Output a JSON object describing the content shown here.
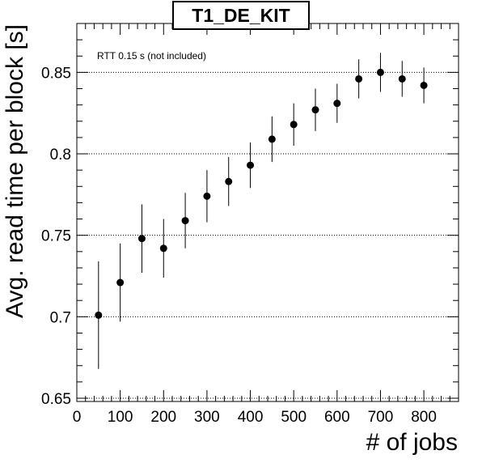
{
  "chart_data": {
    "type": "scatter",
    "title": "T1_DE_KIT",
    "xlabel": "# of jobs",
    "ylabel": "Avg. read time per block [s]",
    "annotation": "RTT 0.15 s (not included)",
    "xlim": [
      0,
      880
    ],
    "ylim": [
      0.648,
      0.88
    ],
    "x_ticks": [
      "0",
      "100",
      "200",
      "300",
      "400",
      "500",
      "600",
      "700",
      "800"
    ],
    "y_ticks": [
      "0.65",
      "0.7",
      "0.75",
      "0.8",
      "0.85"
    ],
    "grid": "horizontal dotted at major y ticks",
    "series": [
      {
        "x": [
          50,
          100,
          150,
          200,
          250,
          300,
          350,
          400,
          450,
          500,
          550,
          600,
          650,
          700,
          750,
          800
        ],
        "y": [
          0.701,
          0.721,
          0.748,
          0.742,
          0.759,
          0.774,
          0.783,
          0.793,
          0.809,
          0.818,
          0.827,
          0.831,
          0.846,
          0.85,
          0.846,
          0.842
        ],
        "y_err": [
          0.033,
          0.024,
          0.021,
          0.018,
          0.017,
          0.016,
          0.015,
          0.014,
          0.014,
          0.013,
          0.013,
          0.012,
          0.012,
          0.012,
          0.011,
          0.011
        ]
      }
    ]
  }
}
